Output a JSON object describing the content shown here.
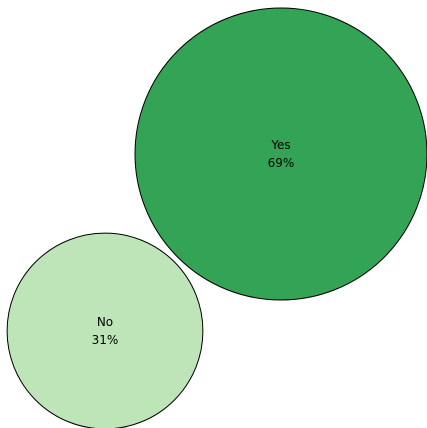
{
  "chart_data": {
    "type": "bubble",
    "items": [
      {
        "label": "Yes",
        "value": 69,
        "value_label": "69%",
        "color": "#33a456"
      },
      {
        "label": "No",
        "value": 31,
        "value_label": "31%",
        "color": "#bde5b8"
      }
    ]
  }
}
